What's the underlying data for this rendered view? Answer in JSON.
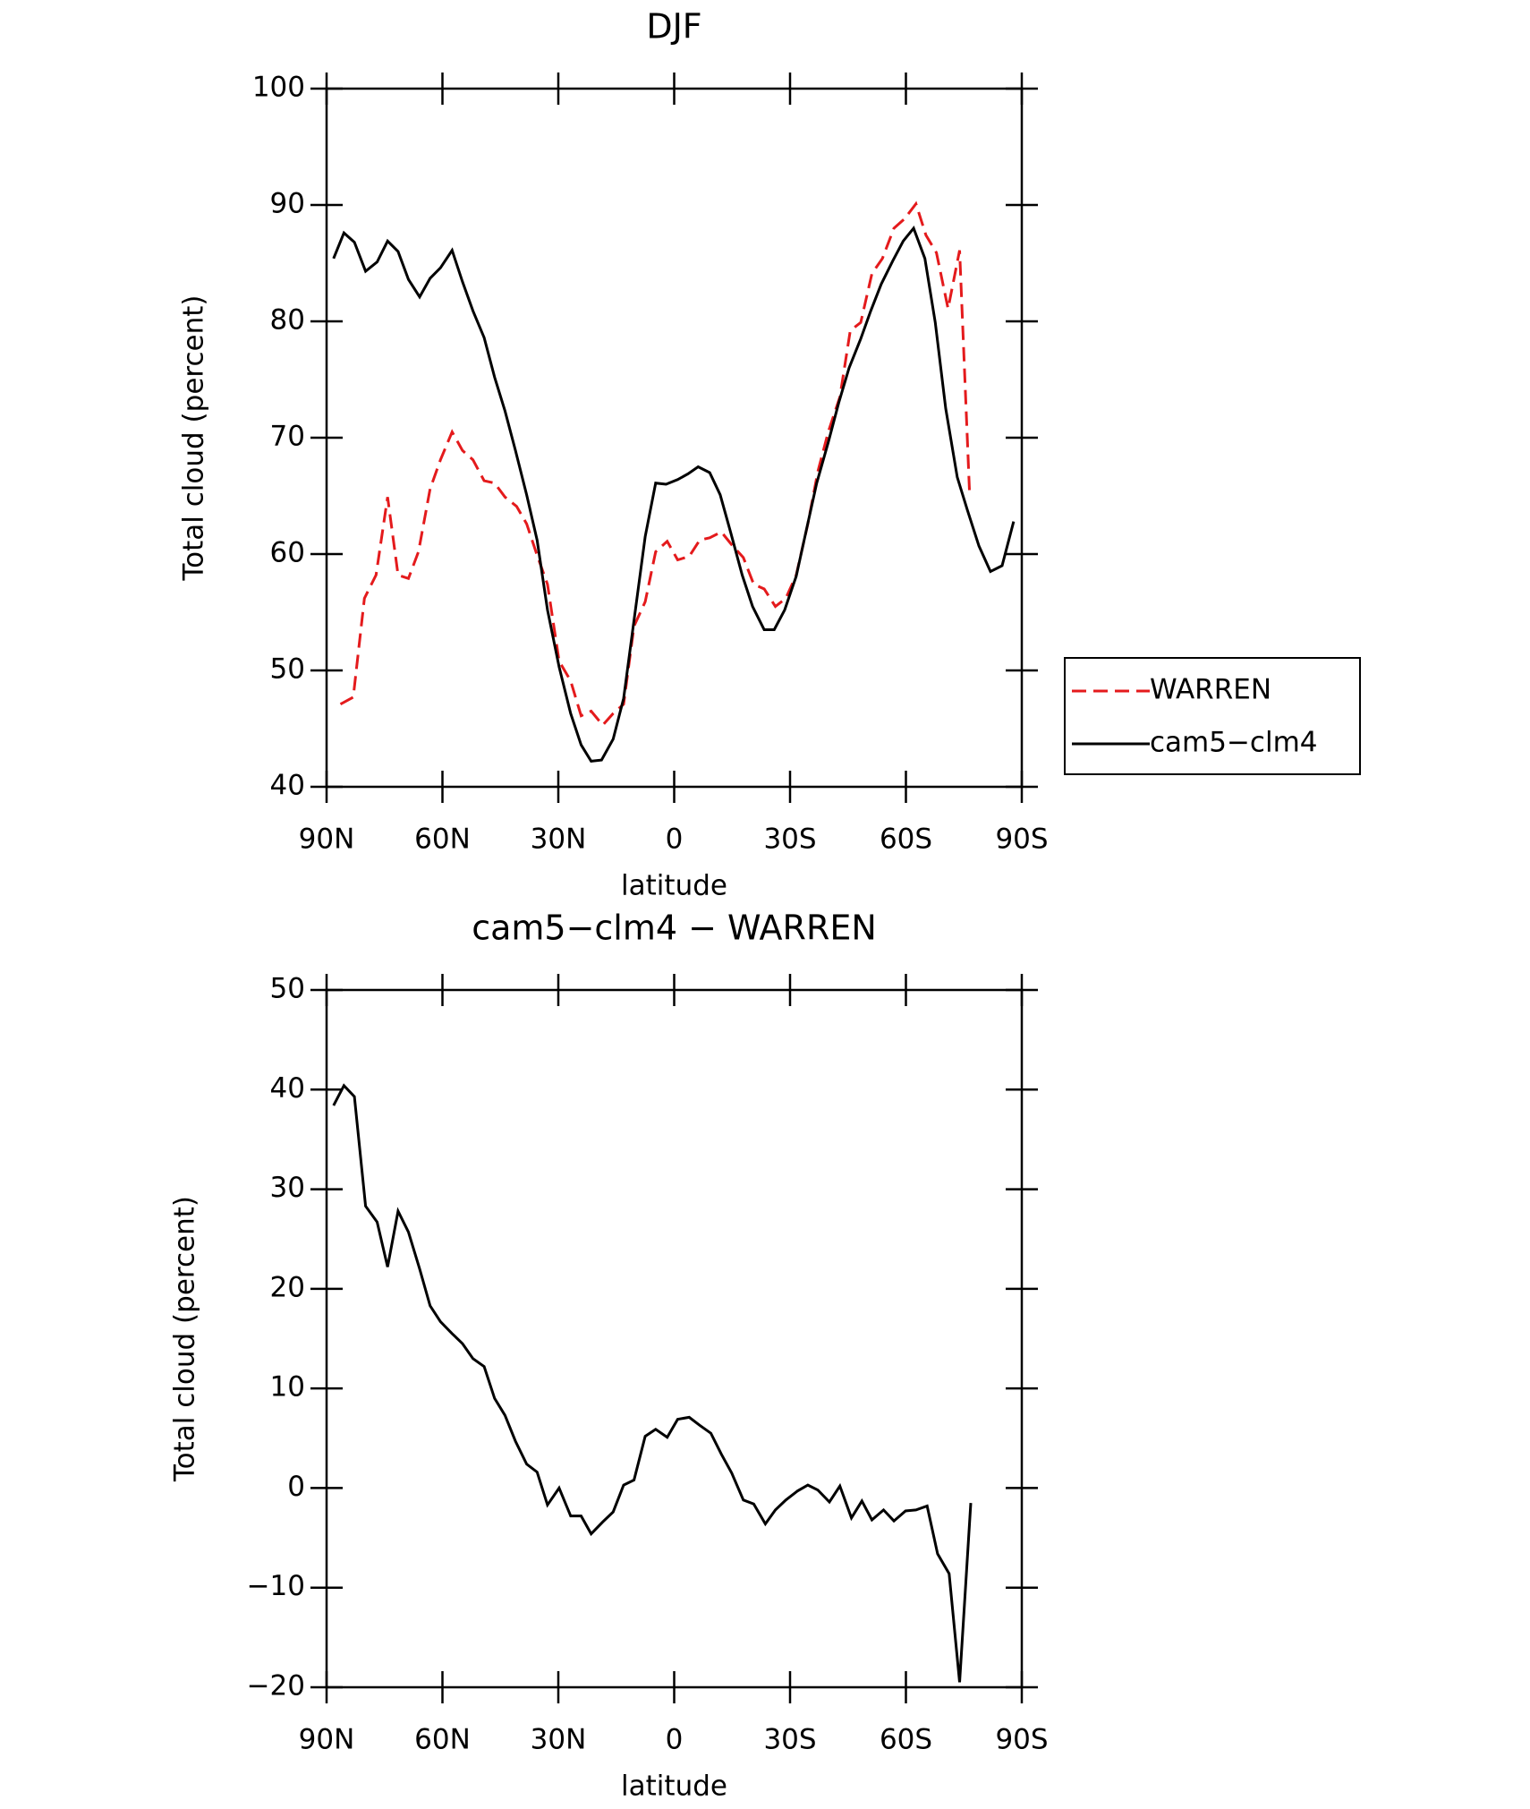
{
  "chart_data": [
    {
      "type": "line",
      "title": "DJF",
      "xlabel": "latitude",
      "ylabel": "Total cloud (percent)",
      "xlim": [
        90,
        -90
      ],
      "ylim": [
        40,
        100
      ],
      "xticks": [
        {
          "value": 90,
          "label": "90N"
        },
        {
          "value": 60,
          "label": "60N"
        },
        {
          "value": 30,
          "label": "30N"
        },
        0,
        {
          "value": -30,
          "label": "30S"
        },
        {
          "value": -60,
          "label": "60S"
        },
        {
          "value": -90,
          "label": "90S"
        }
      ],
      "yticks": [
        40,
        50,
        60,
        70,
        80,
        90,
        100
      ],
      "legend": "right",
      "series": [
        {
          "name": "WARREN",
          "color": "#e41a1c",
          "dashed": true,
          "x": [
            86.4,
            83.1,
            80.2,
            77.2,
            74.2,
            71.5,
            68.8,
            66.2,
            63.2,
            60.5,
            57.5,
            54.8,
            52.1,
            49.2,
            46.5,
            43.8,
            40.8,
            38.2,
            35.5,
            32.8,
            29.8,
            26.8,
            24.1,
            21.5,
            18.5,
            15.8,
            13.1,
            10.4,
            7.5,
            4.8,
            1.8,
            -0.9,
            -3.9,
            -6.6,
            -9.2,
            -12.2,
            -14.9,
            -17.9,
            -20.6,
            -23.3,
            -26.2,
            -28.9,
            -31.6,
            -34.6,
            -37.2,
            -39.9,
            -42.9,
            -45.6,
            -48.3,
            -51.2,
            -53.9,
            -56.9,
            -59.6,
            -62.6,
            -65.2,
            -67.9,
            -70.9,
            -73.9,
            -76.5
          ],
          "values": [
            47.1,
            47.7,
            56.2,
            58.2,
            64.9,
            58.2,
            57.9,
            60.2,
            65.6,
            68.1,
            70.5,
            68.9,
            68.1,
            66.3,
            66.1,
            64.9,
            64.1,
            62.6,
            59.9,
            57.4,
            50.8,
            49.1,
            46.1,
            46.5,
            45.3,
            46.3,
            47.1,
            53.8,
            55.9,
            60.2,
            61.1,
            59.5,
            59.8,
            61.2,
            61.4,
            61.9,
            60.8,
            59.7,
            57.4,
            57.0,
            55.5,
            56.2,
            58.2,
            62.6,
            67.1,
            70.5,
            73.5,
            79.2,
            79.9,
            84.1,
            85.4,
            88.0,
            88.8,
            90.1,
            87.4,
            85.9,
            81.1,
            86.1,
            65.1
          ]
        },
        {
          "name": "cam5−clm4",
          "color": "#000000",
          "dashed": false,
          "x": [
            88.2,
            85.5,
            82.8,
            79.9,
            76.9,
            74.2,
            71.5,
            68.8,
            65.9,
            63.2,
            60.5,
            57.5,
            54.8,
            52.1,
            49.2,
            46.5,
            43.8,
            41.1,
            38.2,
            35.5,
            32.8,
            29.8,
            26.8,
            24.1,
            21.5,
            18.8,
            15.8,
            13.1,
            10.4,
            7.5,
            4.8,
            2.1,
            -0.9,
            -3.6,
            -6.2,
            -9.2,
            -11.9,
            -14.6,
            -17.6,
            -20.3,
            -23.3,
            -25.9,
            -28.6,
            -31.6,
            -34.3,
            -36.9,
            -39.9,
            -42.6,
            -45.3,
            -48.3,
            -50.9,
            -53.6,
            -56.6,
            -59.3,
            -62.0,
            -64.9,
            -67.6,
            -70.3,
            -73.3,
            -75.9,
            -78.9,
            -81.9,
            -84.9,
            -87.9
          ],
          "values": [
            85.4,
            87.6,
            86.8,
            84.3,
            85.1,
            86.9,
            86.0,
            83.6,
            82.1,
            83.7,
            84.6,
            86.1,
            83.4,
            80.9,
            78.6,
            75.2,
            72.3,
            68.9,
            65.1,
            61.2,
            55.2,
            50.3,
            46.3,
            43.6,
            42.2,
            42.3,
            44.1,
            47.6,
            54.3,
            61.5,
            66.1,
            66.0,
            66.4,
            66.9,
            67.5,
            67.0,
            65.1,
            61.9,
            58.2,
            55.5,
            53.5,
            53.5,
            55.2,
            58.1,
            62.2,
            66.1,
            69.6,
            73.0,
            76.0,
            78.5,
            80.9,
            83.2,
            85.2,
            86.9,
            88.0,
            85.4,
            79.9,
            72.5,
            66.6,
            63.8,
            60.7,
            58.5,
            59.0,
            62.8
          ]
        }
      ]
    },
    {
      "type": "line",
      "title": "cam5−clm4 − WARREN",
      "xlabel": "latitude",
      "ylabel": "Total cloud (percent)",
      "xlim": [
        90,
        -90
      ],
      "ylim": [
        -20,
        50
      ],
      "xticks": [
        {
          "value": 90,
          "label": "90N"
        },
        {
          "value": 60,
          "label": "60N"
        },
        {
          "value": 30,
          "label": "30N"
        },
        0,
        {
          "value": -30,
          "label": "30S"
        },
        {
          "value": -60,
          "label": "60S"
        },
        {
          "value": -90,
          "label": "90S"
        }
      ],
      "yticks": [
        {
          "value": -20,
          "label": "−20"
        },
        {
          "value": -10,
          "label": "−10"
        },
        0,
        10,
        20,
        30,
        40,
        50
      ],
      "series": [
        {
          "color": "#000000",
          "dashed": false,
          "x": [
            88.2,
            85.5,
            82.8,
            79.9,
            76.9,
            74.2,
            71.5,
            68.8,
            65.9,
            63.2,
            60.5,
            57.5,
            54.8,
            52.1,
            49.2,
            46.5,
            43.8,
            41.1,
            38.2,
            35.5,
            32.8,
            29.8,
            26.8,
            24.1,
            21.5,
            18.5,
            15.8,
            13.1,
            10.4,
            7.5,
            4.8,
            1.8,
            -0.9,
            -3.9,
            -6.6,
            -9.5,
            -12.2,
            -14.9,
            -17.9,
            -20.6,
            -23.6,
            -26.2,
            -28.9,
            -31.9,
            -34.6,
            -37.2,
            -40.2,
            -42.9,
            -45.9,
            -48.6,
            -51.2,
            -54.2,
            -56.9,
            -59.9,
            -62.6,
            -65.5,
            -68.2,
            -71.2,
            -73.9,
            -76.8
          ],
          "values": [
            38.4,
            40.4,
            39.3,
            28.3,
            26.7,
            22.2,
            27.8,
            25.7,
            22.0,
            18.3,
            16.7,
            15.5,
            14.5,
            13.0,
            12.2,
            9.0,
            7.3,
            4.7,
            2.4,
            1.6,
            -1.7,
            0.0,
            -2.8,
            -2.8,
            -4.6,
            -3.4,
            -2.4,
            0.3,
            0.8,
            5.2,
            5.9,
            5.1,
            6.9,
            7.1,
            6.3,
            5.5,
            3.4,
            1.5,
            -1.2,
            -1.6,
            -3.6,
            -2.2,
            -1.2,
            -0.3,
            0.3,
            -0.2,
            -1.4,
            0.2,
            -3.0,
            -1.3,
            -3.2,
            -2.2,
            -3.3,
            -2.3,
            -2.2,
            -1.8,
            -6.6,
            -8.6,
            -19.5,
            -1.5
          ]
        }
      ]
    }
  ]
}
